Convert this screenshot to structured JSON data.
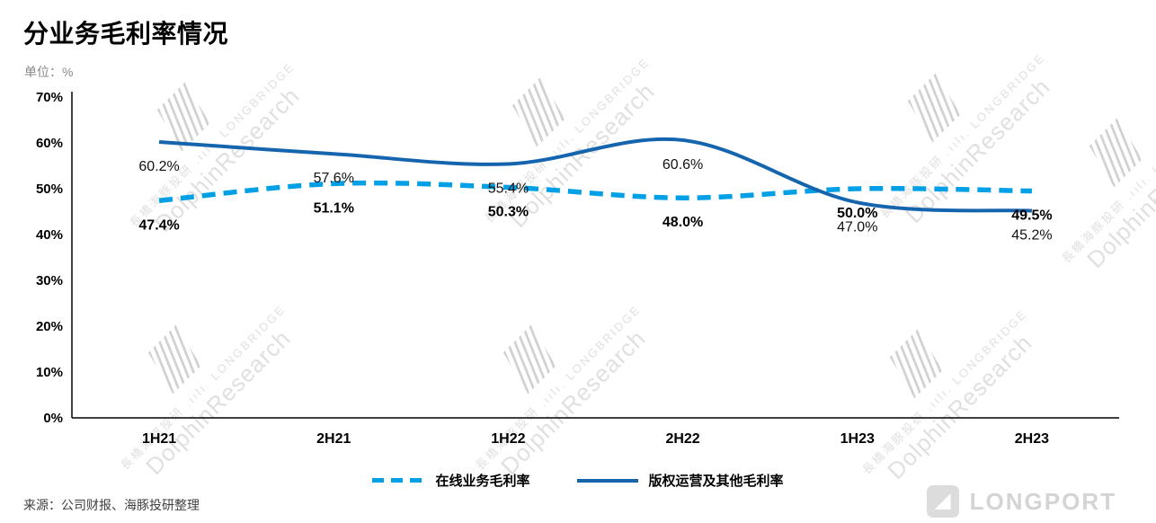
{
  "header": {
    "title": "分业务毛利率情况",
    "unit_label": "单位：%"
  },
  "chart_data": {
    "type": "line",
    "categories": [
      "1H21",
      "2H21",
      "1H22",
      "2H22",
      "1H23",
      "2H23"
    ],
    "series": [
      {
        "name": "在线业务毛利率",
        "values": [
          47.4,
          51.1,
          50.3,
          48.0,
          50.0,
          49.5
        ],
        "color": "#00A0E6",
        "style": "dashed"
      },
      {
        "name": "版权运营及其他毛利率",
        "values": [
          60.2,
          57.6,
          55.4,
          60.6,
          47.0,
          45.2
        ],
        "color": "#1565AE",
        "style": "solid"
      }
    ],
    "title": "分业务毛利率情况",
    "xlabel": "",
    "ylabel": "%",
    "ylim": [
      0,
      70
    ],
    "ytick_labels": [
      "0%",
      "10%",
      "20%",
      "30%",
      "40%",
      "50%",
      "60%",
      "70%"
    ],
    "grid": false,
    "legend_position": "bottom",
    "data_labels": true
  },
  "footer": {
    "source": "来源：公司财报、海豚投研整理"
  },
  "watermark": {
    "small": "長橋海豚投研 .ıılı. LONGBRIDGE",
    "big": "DolphinResearch"
  },
  "logo": {
    "text": "LONGPORT"
  }
}
